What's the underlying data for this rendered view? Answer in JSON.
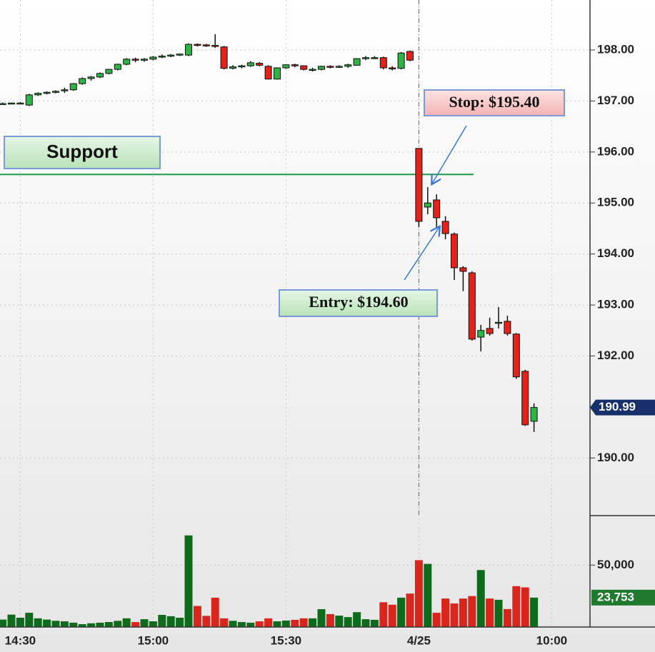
{
  "chart_data": {
    "type": "candlestick",
    "categories": [
      null,
      null,
      "14:30",
      null,
      null,
      null,
      null,
      null,
      null,
      null,
      null,
      null,
      null,
      null,
      null,
      null,
      null,
      "15:00",
      null,
      null,
      null,
      null,
      null,
      null,
      null,
      null,
      null,
      null,
      null,
      null,
      null,
      null,
      "15:30",
      null,
      null,
      null,
      null,
      null,
      null,
      null,
      null,
      null,
      null,
      null,
      null,
      null,
      null,
      "4/25",
      null,
      null,
      null,
      null,
      null,
      null,
      null,
      null,
      null,
      null,
      null,
      null,
      null,
      null,
      "10:00"
    ],
    "open": [
      196.95,
      196.95,
      196.96,
      196.92,
      197.12,
      197.15,
      197.17,
      197.2,
      197.22,
      197.34,
      197.44,
      197.47,
      197.54,
      197.62,
      197.72,
      197.82,
      197.8,
      197.82,
      197.86,
      197.88,
      197.9,
      197.9,
      198.11,
      198.1,
      198.09,
      198.06,
      197.64,
      197.67,
      197.69,
      197.74,
      197.68,
      197.43,
      197.65,
      197.71,
      197.69,
      197.62,
      197.62,
      197.68,
      197.67,
      197.68,
      197.7,
      197.83,
      197.85,
      197.85,
      197.65,
      197.64,
      197.97,
      196.07,
      194.92,
      195.06,
      194.64,
      194.39,
      193.73,
      193.63,
      192.37,
      192.54,
      192.64,
      192.68,
      192.43,
      191.7,
      190.72,
      null,
      null
    ],
    "high": [
      196.97,
      196.97,
      196.98,
      197.14,
      197.17,
      197.19,
      197.21,
      197.26,
      197.35,
      197.46,
      197.49,
      197.56,
      197.63,
      197.73,
      197.84,
      197.85,
      197.84,
      197.88,
      197.91,
      197.92,
      197.93,
      198.13,
      198.13,
      198.12,
      198.31,
      198.08,
      197.7,
      197.71,
      197.78,
      197.76,
      197.7,
      197.66,
      197.72,
      197.73,
      197.7,
      197.65,
      197.69,
      197.7,
      197.7,
      197.73,
      197.84,
      197.88,
      197.88,
      197.87,
      197.68,
      197.96,
      197.99,
      196.07,
      195.31,
      195.17,
      194.74,
      194.42,
      193.76,
      193.66,
      192.61,
      192.75,
      192.96,
      192.79,
      192.45,
      191.73,
      191.07,
      null,
      null
    ],
    "low": [
      196.93,
      196.94,
      196.94,
      196.9,
      197.1,
      197.13,
      197.15,
      197.16,
      197.2,
      197.32,
      197.4,
      197.45,
      197.52,
      197.6,
      197.7,
      197.76,
      197.77,
      197.8,
      197.84,
      197.86,
      197.88,
      197.88,
      198.07,
      198.06,
      198.04,
      197.62,
      197.62,
      197.64,
      197.67,
      197.68,
      197.42,
      197.42,
      197.63,
      197.66,
      197.6,
      197.58,
      197.6,
      197.64,
      197.65,
      197.65,
      197.69,
      197.8,
      197.82,
      197.62,
      197.6,
      197.62,
      197.78,
      194.53,
      194.78,
      194.5,
      194.29,
      193.49,
      193.27,
      192.3,
      192.09,
      192.4,
      192.54,
      192.4,
      191.55,
      190.63,
      190.51,
      null,
      null
    ],
    "close": [
      196.95,
      196.96,
      196.96,
      197.12,
      197.15,
      197.17,
      197.19,
      197.22,
      197.34,
      197.44,
      197.47,
      197.54,
      197.62,
      197.72,
      197.82,
      197.8,
      197.82,
      197.86,
      197.88,
      197.9,
      197.92,
      198.11,
      198.1,
      198.09,
      198.08,
      197.64,
      197.67,
      197.69,
      197.75,
      197.7,
      197.43,
      197.65,
      197.71,
      197.69,
      197.62,
      197.62,
      197.68,
      197.67,
      197.68,
      197.71,
      197.83,
      197.85,
      197.85,
      197.65,
      197.64,
      197.94,
      197.8,
      194.64,
      195.0,
      194.71,
      194.4,
      193.73,
      193.66,
      192.33,
      192.5,
      192.44,
      192.66,
      192.44,
      191.59,
      190.65,
      190.99,
      null,
      null
    ],
    "up_color": "#2fb344",
    "down_color": "#e32219",
    "ylim": [
      188.87,
      198.98
    ],
    "yticks": [
      {
        "value": 190,
        "label": "190.00"
      },
      {
        "value": 192,
        "label": "192.00"
      },
      {
        "value": 193,
        "label": "193.00"
      },
      {
        "value": 194,
        "label": "194.00"
      },
      {
        "value": 195,
        "label": "195.00"
      },
      {
        "value": 196,
        "label": "196.00"
      },
      {
        "value": 197,
        "label": "197.00"
      },
      {
        "value": 198,
        "label": "198.00"
      }
    ],
    "grid": true,
    "volume": {
      "values": [
        6000,
        10000,
        7500,
        11500,
        7000,
        6000,
        5000,
        4600,
        3500,
        2300,
        3000,
        3500,
        4000,
        5000,
        7000,
        4000,
        6300,
        4600,
        9800,
        8700,
        7500,
        74000,
        17000,
        9000,
        23700,
        7000,
        5000,
        4000,
        3500,
        4600,
        7000,
        4600,
        5200,
        5800,
        7000,
        7000,
        14400,
        10400,
        9200,
        8000,
        12000,
        6300,
        5800,
        20000,
        18000,
        23700,
        27000,
        54000,
        51000,
        11500,
        23000,
        19000,
        23000,
        25000,
        46000,
        23000,
        22000,
        14500,
        33000,
        32000,
        23753,
        null,
        null
      ],
      "value_labels": [
        null,
        null,
        null,
        null,
        null,
        null,
        null,
        null,
        null,
        null,
        null,
        null,
        null,
        null,
        null,
        null,
        null,
        null,
        null,
        null,
        null,
        null,
        null,
        null,
        null,
        null,
        null,
        null,
        null,
        null,
        null,
        null,
        null,
        null,
        null,
        null,
        null,
        null,
        null,
        null,
        null,
        null,
        null,
        null,
        null,
        null,
        null,
        null,
        null,
        null,
        null,
        null,
        null,
        null,
        null,
        null,
        null,
        null,
        null,
        null,
        "23,753",
        null,
        null
      ],
      "up_color": "#0d6b1b",
      "down_color": "#d8261d",
      "ylim": [
        0,
        90000
      ],
      "yticks": [
        {
          "value": 50000,
          "label": "50,000"
        }
      ]
    },
    "support": {
      "label": "Support",
      "value": 195.56,
      "color": "#1a9a4a"
    },
    "stop_label": "Stop: $195.40",
    "entry_label": "Entry: $194.60"
  }
}
